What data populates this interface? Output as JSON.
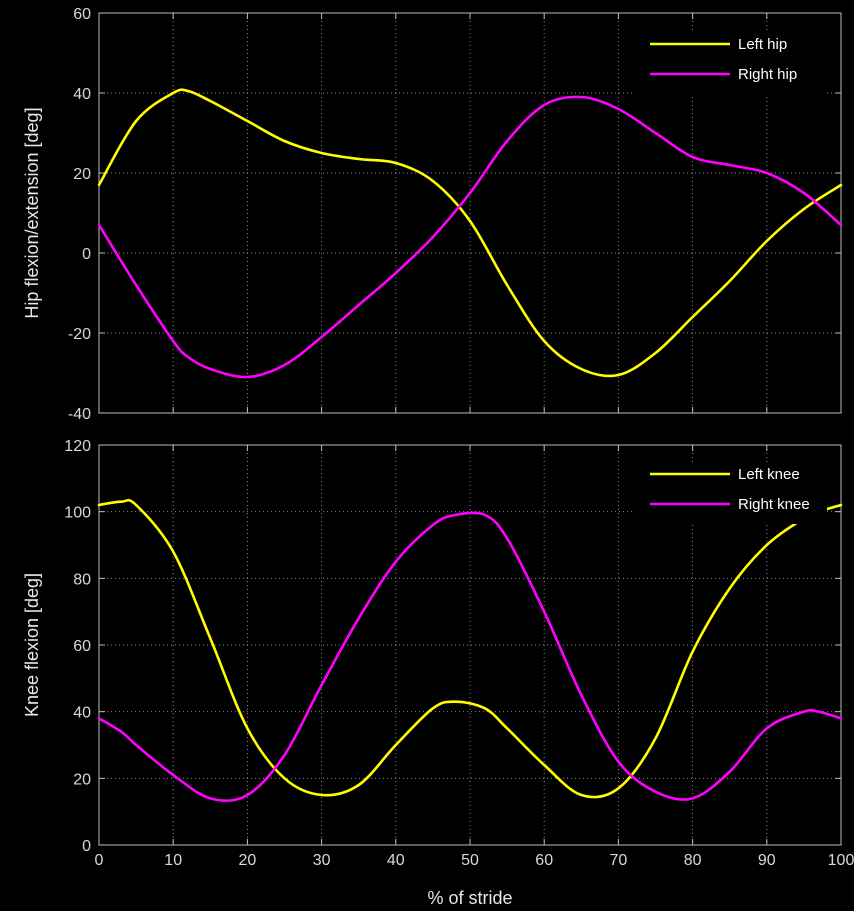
{
  "chart_data": [
    {
      "type": "line",
      "ylabel": "Hip flexion/extension [deg]",
      "xlim": [
        0,
        100
      ],
      "ylim": [
        -40,
        60
      ],
      "xticks": [
        "0",
        "10",
        "20",
        "30",
        "40",
        "50",
        "60",
        "70",
        "80",
        "90",
        "100"
      ],
      "yticks": [
        "-40",
        "-20",
        "0",
        "20",
        "40",
        "60"
      ],
      "grid": true,
      "legend_position": "top-right",
      "x": [
        0,
        5,
        10,
        12,
        15,
        20,
        25,
        30,
        35,
        40,
        45,
        50,
        55,
        60,
        65,
        70,
        75,
        80,
        85,
        90,
        95,
        100
      ],
      "series": [
        {
          "name": "Left hip",
          "color": "#ffff00",
          "values": [
            17,
            33,
            40,
            40.5,
            38,
            33,
            28,
            25,
            23.5,
            22.5,
            18,
            8,
            -8,
            -22,
            -29,
            -30.5,
            -25,
            -16,
            -7,
            3,
            11,
            17
          ]
        },
        {
          "name": "Right hip",
          "color": "#ff00ff",
          "values": [
            7,
            -8,
            -22,
            -26,
            -29,
            -31,
            -28,
            -21,
            -13,
            -5,
            4,
            15,
            28,
            37,
            39,
            36,
            30,
            24,
            22,
            20,
            15,
            7
          ]
        }
      ]
    },
    {
      "type": "line",
      "ylabel": "Knee flexion [deg]",
      "xlabel": "% of stride",
      "xlim": [
        0,
        100
      ],
      "ylim": [
        0,
        120
      ],
      "xticks": [
        "0",
        "10",
        "20",
        "30",
        "40",
        "50",
        "60",
        "70",
        "80",
        "90",
        "100"
      ],
      "yticks": [
        "0",
        "20",
        "40",
        "60",
        "80",
        "100",
        "120"
      ],
      "grid": true,
      "legend_position": "top-right",
      "x": [
        0,
        3,
        5,
        10,
        15,
        20,
        25,
        30,
        35,
        40,
        45,
        48,
        52,
        55,
        60,
        65,
        70,
        75,
        80,
        85,
        90,
        95,
        97,
        100
      ],
      "series": [
        {
          "name": "Left knee",
          "color": "#ffff00",
          "values": [
            102,
            103,
            102,
            88,
            62,
            35,
            20,
            15,
            18,
            30,
            41,
            43,
            41,
            35,
            24,
            15,
            17,
            32,
            58,
            77,
            90,
            98,
            100,
            102
          ]
        },
        {
          "name": "Right knee",
          "color": "#ff00ff",
          "values": [
            38,
            34,
            30,
            21,
            14,
            15,
            27,
            48,
            68,
            85,
            96,
            99,
            99,
            92,
            70,
            45,
            25,
            16,
            14,
            22,
            35,
            40,
            40,
            38
          ]
        }
      ]
    }
  ]
}
